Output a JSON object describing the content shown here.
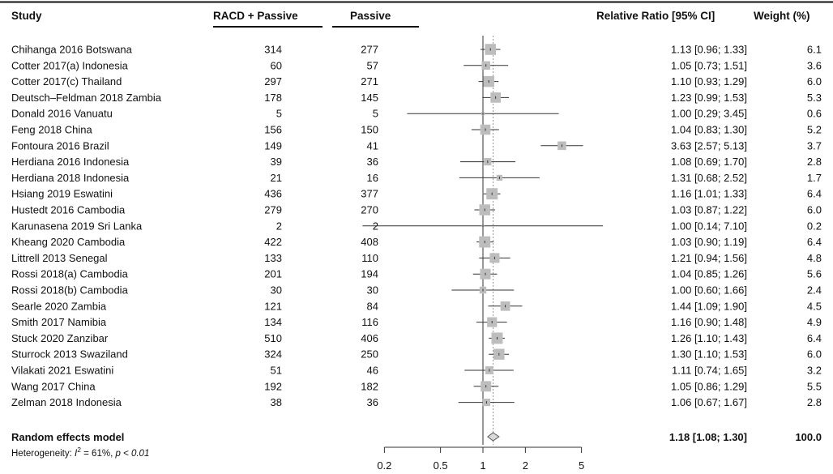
{
  "chart_data": {
    "type": "forest",
    "columns": {
      "study": "Study",
      "group1": "RACD + Passive",
      "group2": "Passive",
      "effect": "Relative Ratio [95% CI]",
      "weight": "Weight (%)"
    },
    "studies": [
      {
        "name": "Chihanga 2016 Botswana",
        "n1": "314",
        "n2": "277",
        "rr": 1.13,
        "lo": 0.96,
        "hi": 1.33,
        "ci_text": "1.13  [0.96; 1.33]",
        "weight": "6.1"
      },
      {
        "name": "Cotter 2017(a) Indonesia",
        "n1": "60",
        "n2": "57",
        "rr": 1.05,
        "lo": 0.73,
        "hi": 1.51,
        "ci_text": "1.05  [0.73; 1.51]",
        "weight": "3.6"
      },
      {
        "name": "Cotter 2017(c) Thailand",
        "n1": "297",
        "n2": "271",
        "rr": 1.1,
        "lo": 0.93,
        "hi": 1.29,
        "ci_text": "1.10  [0.93; 1.29]",
        "weight": "6.0"
      },
      {
        "name": "Deutsch–Feldman 2018 Zambia",
        "n1": "178",
        "n2": "145",
        "rr": 1.23,
        "lo": 0.99,
        "hi": 1.53,
        "ci_text": "1.23  [0.99; 1.53]",
        "weight": "5.3"
      },
      {
        "name": "Donald 2016 Vanuatu",
        "n1": "5",
        "n2": "5",
        "rr": 1.0,
        "lo": 0.29,
        "hi": 3.45,
        "ci_text": "1.00  [0.29; 3.45]",
        "weight": "0.6"
      },
      {
        "name": "Feng 2018 China",
        "n1": "156",
        "n2": "150",
        "rr": 1.04,
        "lo": 0.83,
        "hi": 1.3,
        "ci_text": "1.04  [0.83; 1.30]",
        "weight": "5.2"
      },
      {
        "name": "Fontoura 2016 Brazil",
        "n1": "149",
        "n2": "41",
        "rr": 3.63,
        "lo": 2.57,
        "hi": 5.13,
        "ci_text": "3.63  [2.57; 5.13]",
        "weight": "3.7"
      },
      {
        "name": "Herdiana 2016 Indonesia",
        "n1": "39",
        "n2": "36",
        "rr": 1.08,
        "lo": 0.69,
        "hi": 1.7,
        "ci_text": "1.08  [0.69; 1.70]",
        "weight": "2.8"
      },
      {
        "name": "Herdiana 2018 Indonesia",
        "n1": "21",
        "n2": "16",
        "rr": 1.31,
        "lo": 0.68,
        "hi": 2.52,
        "ci_text": "1.31  [0.68; 2.52]",
        "weight": "1.7"
      },
      {
        "name": "Hsiang 2019 Eswatini",
        "n1": "436",
        "n2": "377",
        "rr": 1.16,
        "lo": 1.01,
        "hi": 1.33,
        "ci_text": "1.16  [1.01; 1.33]",
        "weight": "6.4"
      },
      {
        "name": "Hustedt 2016 Cambodia",
        "n1": "279",
        "n2": "270",
        "rr": 1.03,
        "lo": 0.87,
        "hi": 1.22,
        "ci_text": "1.03  [0.87; 1.22]",
        "weight": "6.0"
      },
      {
        "name": "Karunasena 2019 Sri Lanka",
        "n1": "2",
        "n2": "2",
        "rr": 1.0,
        "lo": 0.14,
        "hi": 7.1,
        "ci_text": "1.00  [0.14; 7.10]",
        "weight": "0.2"
      },
      {
        "name": "Kheang 2020 Cambodia",
        "n1": "422",
        "n2": "408",
        "rr": 1.03,
        "lo": 0.9,
        "hi": 1.19,
        "ci_text": "1.03  [0.90; 1.19]",
        "weight": "6.4"
      },
      {
        "name": "Littrell 2013 Senegal",
        "n1": "133",
        "n2": "110",
        "rr": 1.21,
        "lo": 0.94,
        "hi": 1.56,
        "ci_text": "1.21  [0.94; 1.56]",
        "weight": "4.8"
      },
      {
        "name": "Rossi 2018(a) Cambodia",
        "n1": "201",
        "n2": "194",
        "rr": 1.04,
        "lo": 0.85,
        "hi": 1.26,
        "ci_text": "1.04  [0.85; 1.26]",
        "weight": "5.6"
      },
      {
        "name": "Rossi 2018(b) Cambodia",
        "n1": "30",
        "n2": "30",
        "rr": 1.0,
        "lo": 0.6,
        "hi": 1.66,
        "ci_text": "1.00  [0.60; 1.66]",
        "weight": "2.4"
      },
      {
        "name": "Searle 2020 Zambia",
        "n1": "121",
        "n2": "84",
        "rr": 1.44,
        "lo": 1.09,
        "hi": 1.9,
        "ci_text": "1.44  [1.09; 1.90]",
        "weight": "4.5"
      },
      {
        "name": "Smith 2017 Namibia",
        "n1": "134",
        "n2": "116",
        "rr": 1.16,
        "lo": 0.9,
        "hi": 1.48,
        "ci_text": "1.16  [0.90; 1.48]",
        "weight": "4.9"
      },
      {
        "name": "Stuck 2020 Zanzibar",
        "n1": "510",
        "n2": "406",
        "rr": 1.26,
        "lo": 1.1,
        "hi": 1.43,
        "ci_text": "1.26  [1.10; 1.43]",
        "weight": "6.4"
      },
      {
        "name": "Sturrock 2013 Swaziland",
        "n1": "324",
        "n2": "250",
        "rr": 1.3,
        "lo": 1.1,
        "hi": 1.53,
        "ci_text": "1.30  [1.10; 1.53]",
        "weight": "6.0"
      },
      {
        "name": "Vilakati 2021 Eswatini",
        "n1": "51",
        "n2": "46",
        "rr": 1.11,
        "lo": 0.74,
        "hi": 1.65,
        "ci_text": "1.11  [0.74; 1.65]",
        "weight": "3.2"
      },
      {
        "name": "Wang 2017 China",
        "n1": "192",
        "n2": "182",
        "rr": 1.05,
        "lo": 0.86,
        "hi": 1.29,
        "ci_text": "1.05  [0.86; 1.29]",
        "weight": "5.5"
      },
      {
        "name": "Zelman 2018 Indonesia",
        "n1": "38",
        "n2": "36",
        "rr": 1.06,
        "lo": 0.67,
        "hi": 1.67,
        "ci_text": "1.06  [0.67; 1.67]",
        "weight": "2.8"
      }
    ],
    "pooled": {
      "name": "Random effects model",
      "rr": 1.18,
      "lo": 1.08,
      "hi": 1.3,
      "ci_text": "1.18  [1.08; 1.30]",
      "weight": "100.0"
    },
    "heterogeneity": {
      "prefix": "Heterogeneity: ",
      "i2": "61%",
      "p": "p < 0.01"
    },
    "x_scale": "log",
    "x_range": [
      0.14,
      7.1
    ],
    "x_ticks": [
      0.2,
      0.5,
      1,
      2,
      5
    ],
    "x_tick_labels": [
      "0.2",
      "0.5",
      "1",
      "2",
      "5"
    ],
    "reference_line": 1,
    "colors": {
      "box": "#bdbdbd",
      "line": "#333333",
      "diamond_fill": "#d9d9d9",
      "dotted": "#9a9a9a"
    }
  }
}
